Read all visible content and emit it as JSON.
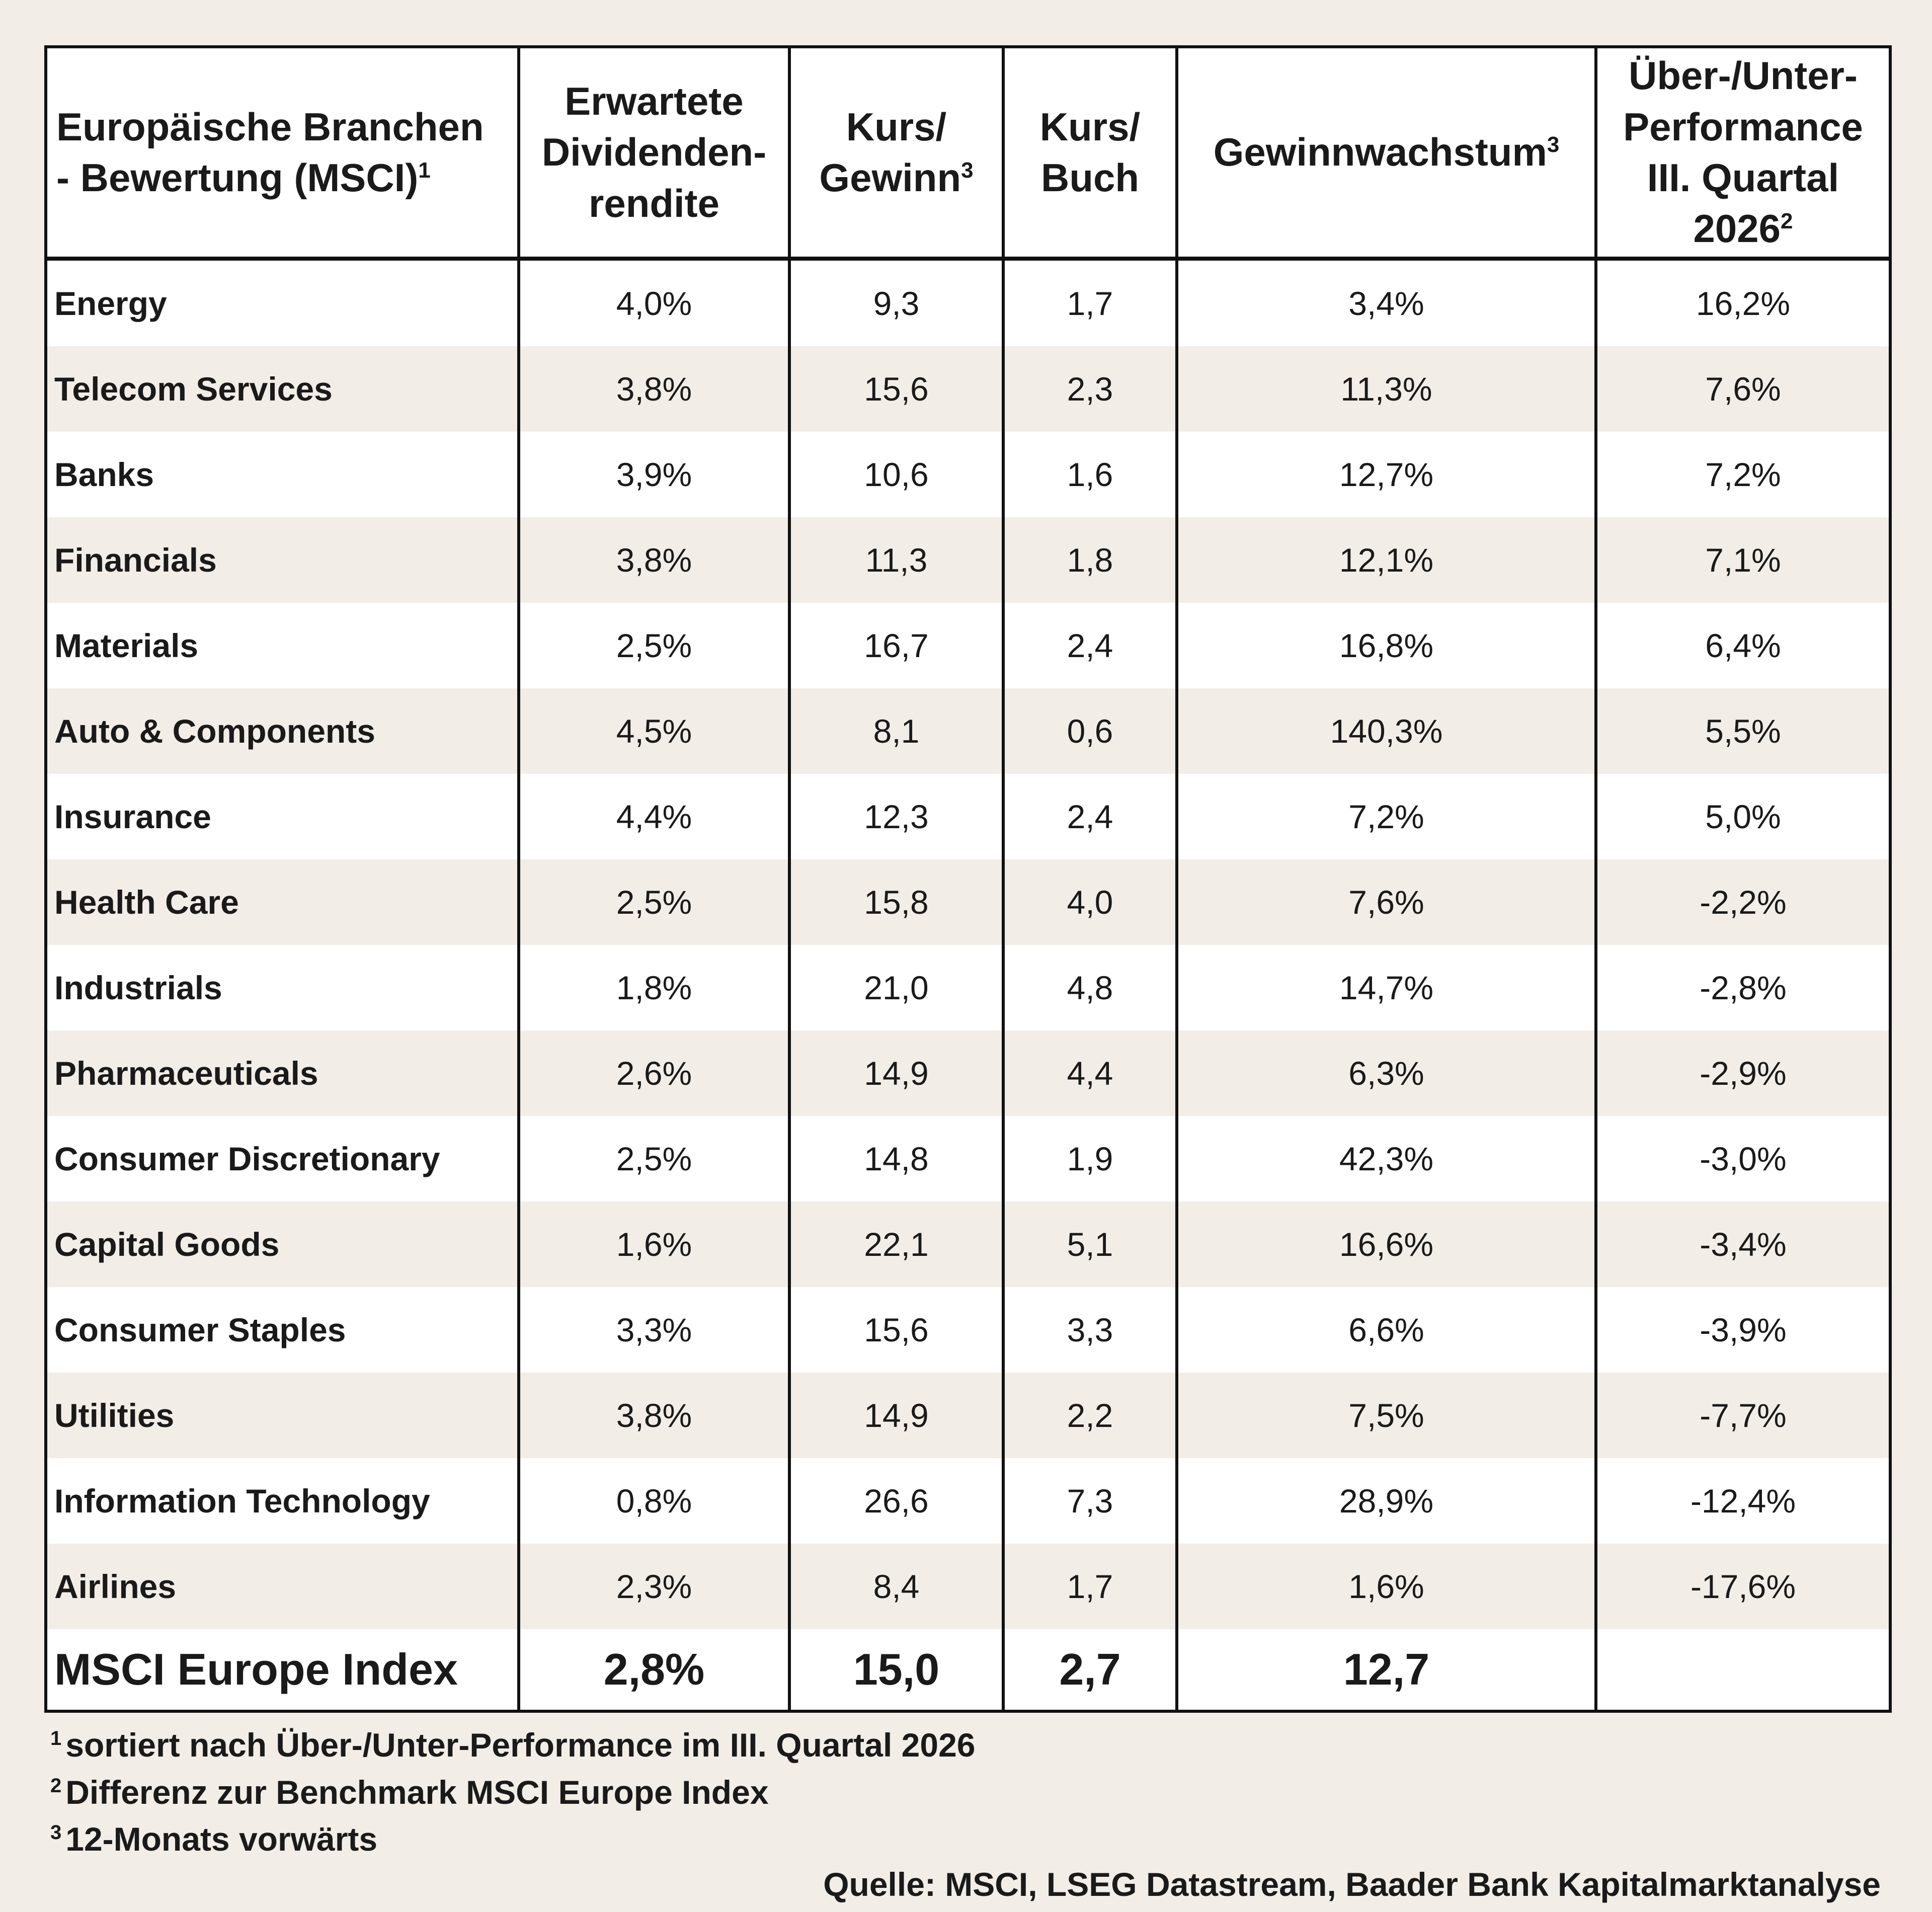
{
  "header": {
    "sector_line1": "Europäische Branchen",
    "sector_line2": "- Bewertung (MSCI)",
    "sector_sup": "1",
    "dividend_line1": "Erwartete",
    "dividend_line2": "Dividenden-",
    "dividend_line3": "rendite",
    "pe_line1": "Kurs/",
    "pe_line2": "Gewinn",
    "pe_sup": "3",
    "pb_line1": "Kurs/",
    "pb_line2": "Buch",
    "growth_label": "Gewinnwachstum",
    "growth_sup": "3",
    "perf_line1": "Über-/Unter-",
    "perf_line2": "Performance",
    "perf_line3": "III. Quartal",
    "perf_line4": "2026",
    "perf_sup": "2"
  },
  "rows": [
    {
      "sector": "Energy",
      "dividend": "4,0%",
      "pe": "9,3",
      "pb": "1,7",
      "growth": "3,4%",
      "performance": "16,2%"
    },
    {
      "sector": "Telecom Services",
      "dividend": "3,8%",
      "pe": "15,6",
      "pb": "2,3",
      "growth": "11,3%",
      "performance": "7,6%"
    },
    {
      "sector": "Banks",
      "dividend": "3,9%",
      "pe": "10,6",
      "pb": "1,6",
      "growth": "12,7%",
      "performance": "7,2%"
    },
    {
      "sector": "Financials",
      "dividend": "3,8%",
      "pe": "11,3",
      "pb": "1,8",
      "growth": "12,1%",
      "performance": "7,1%"
    },
    {
      "sector": "Materials",
      "dividend": "2,5%",
      "pe": "16,7",
      "pb": "2,4",
      "growth": "16,8%",
      "performance": "6,4%"
    },
    {
      "sector": "Auto & Components",
      "dividend": "4,5%",
      "pe": "8,1",
      "pb": "0,6",
      "growth": "140,3%",
      "performance": "5,5%"
    },
    {
      "sector": "Insurance",
      "dividend": "4,4%",
      "pe": "12,3",
      "pb": "2,4",
      "growth": "7,2%",
      "performance": "5,0%"
    },
    {
      "sector": "Health Care",
      "dividend": "2,5%",
      "pe": "15,8",
      "pb": "4,0",
      "growth": "7,6%",
      "performance": "-2,2%"
    },
    {
      "sector": "Industrials",
      "dividend": "1,8%",
      "pe": "21,0",
      "pb": "4,8",
      "growth": "14,7%",
      "performance": "-2,8%"
    },
    {
      "sector": "Pharmaceuticals",
      "dividend": "2,6%",
      "pe": "14,9",
      "pb": "4,4",
      "growth": "6,3%",
      "performance": "-2,9%"
    },
    {
      "sector": "Consumer Discretionary",
      "dividend": "2,5%",
      "pe": "14,8",
      "pb": "1,9",
      "growth": "42,3%",
      "performance": "-3,0%"
    },
    {
      "sector": "Capital Goods",
      "dividend": "1,6%",
      "pe": "22,1",
      "pb": "5,1",
      "growth": "16,6%",
      "performance": "-3,4%"
    },
    {
      "sector": "Consumer Staples",
      "dividend": "3,3%",
      "pe": "15,6",
      "pb": "3,3",
      "growth": "6,6%",
      "performance": "-3,9%"
    },
    {
      "sector": "Utilities",
      "dividend": "3,8%",
      "pe": "14,9",
      "pb": "2,2",
      "growth": "7,5%",
      "performance": "-7,7%"
    },
    {
      "sector": "Information Technology",
      "dividend": "0,8%",
      "pe": "26,6",
      "pb": "7,3",
      "growth": "28,9%",
      "performance": "-12,4%"
    },
    {
      "sector": "Airlines",
      "dividend": "2,3%",
      "pe": "8,4",
      "pb": "1,7",
      "growth": "1,6%",
      "performance": "-17,6%"
    }
  ],
  "total": {
    "sector": "MSCI Europe Index",
    "dividend": "2,8%",
    "pe": "15,0",
    "pb": "2,7",
    "growth": "12,7",
    "performance": ""
  },
  "footnotes": [
    {
      "mark": "1",
      "text": "sortiert nach Über-/Unter-Performance im III. Quartal 2026"
    },
    {
      "mark": "2",
      "text": "Differenz zur Benchmark MSCI Europe Index"
    },
    {
      "mark": "3",
      "text": "12-Monats vorwärts"
    }
  ],
  "source": "Quelle: MSCI, LSEG Datastream, Baader Bank Kapitalmarktanalyse"
}
